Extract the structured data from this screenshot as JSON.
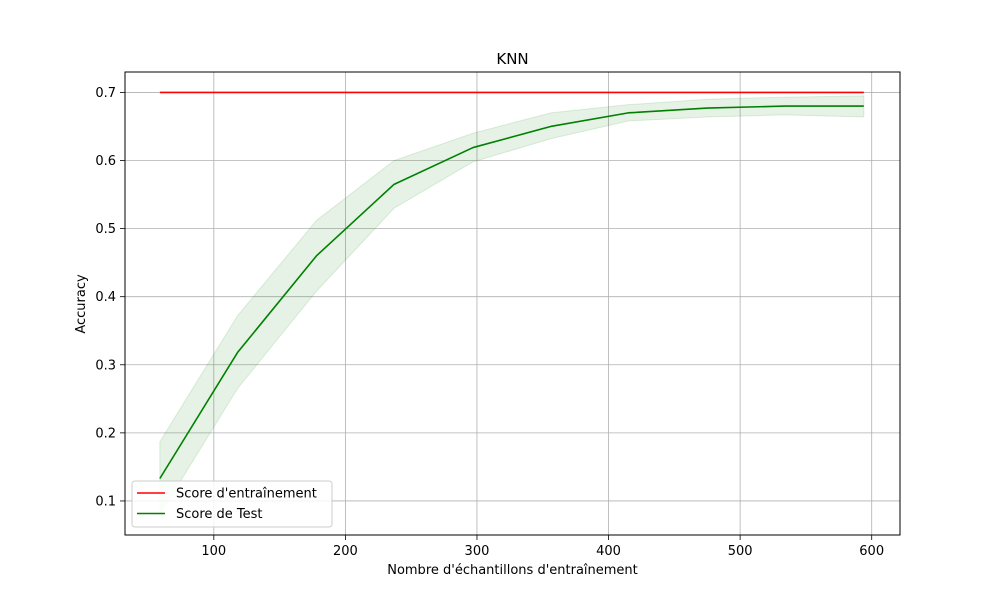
{
  "chart_data": {
    "type": "line",
    "title": "KNN",
    "xlabel": "Nombre d'échantillons d'entraînement",
    "ylabel": "Accuracy",
    "xlim": [
      32.5,
      621.5
    ],
    "ylim": [
      0.05,
      0.73
    ],
    "xticks": [
      100,
      200,
      300,
      400,
      500,
      600
    ],
    "yticks": [
      0.1,
      0.2,
      0.3,
      0.4,
      0.5,
      0.6,
      0.7
    ],
    "xtick_labels": [
      "100",
      "200",
      "300",
      "400",
      "500",
      "600"
    ],
    "ytick_labels": [
      "0.1",
      "0.2",
      "0.3",
      "0.4",
      "0.5",
      "0.6",
      "0.7"
    ],
    "grid": true,
    "legend_position": "lower-left",
    "x": [
      59,
      118,
      178,
      237,
      297,
      356,
      415,
      475,
      534,
      594
    ],
    "series": [
      {
        "name": "Score d'entraînement",
        "color": "#ff0000",
        "values": [
          0.7,
          0.7,
          0.7,
          0.7,
          0.7,
          0.7,
          0.7,
          0.7,
          0.7,
          0.7
        ]
      },
      {
        "name": "Score de Test",
        "color": "#008000",
        "values": [
          0.133,
          0.318,
          0.46,
          0.565,
          0.619,
          0.65,
          0.67,
          0.677,
          0.68,
          0.68
        ],
        "band_lower": [
          0.08,
          0.265,
          0.408,
          0.53,
          0.598,
          0.632,
          0.658,
          0.664,
          0.667,
          0.664
        ],
        "band_upper": [
          0.187,
          0.372,
          0.512,
          0.6,
          0.64,
          0.67,
          0.682,
          0.69,
          0.693,
          0.695
        ],
        "band_color": "#008000"
      }
    ]
  }
}
